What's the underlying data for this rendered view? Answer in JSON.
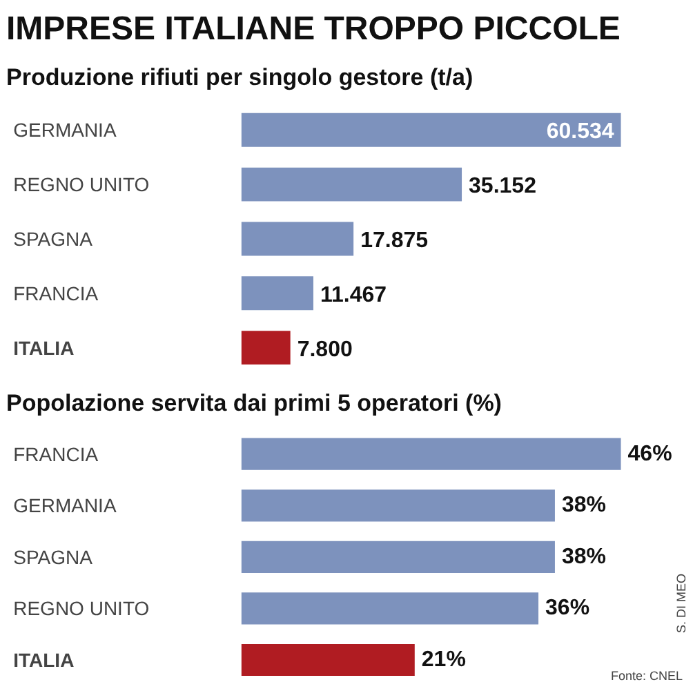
{
  "chart_data": [
    {
      "type": "bar",
      "orientation": "horizontal",
      "title": "IMPRESE ITALIANE TROPPO PICCOLE",
      "subtitle": "Produzione rifiuti per singolo gestore (t/a)",
      "categories": [
        "GERMANIA",
        "REGNO UNITO",
        "SPAGNA",
        "FRANCIA",
        "ITALIA"
      ],
      "values": [
        60534,
        35152,
        17875,
        11467,
        7800
      ],
      "value_labels": [
        "60.534",
        "35.152",
        "17.875",
        "11.467",
        "7.800"
      ],
      "colors": [
        "#7d92bd",
        "#7d92bd",
        "#7d92bd",
        "#7d92bd",
        "#b01c22"
      ]
    },
    {
      "type": "bar",
      "orientation": "horizontal",
      "title": "Popolazione servita dai primi 5 operatori (%)",
      "categories": [
        "FRANCIA",
        "GERMANIA",
        "SPAGNA",
        "REGNO UNITO",
        "ITALIA"
      ],
      "values": [
        46,
        38,
        38,
        36,
        21
      ],
      "value_labels": [
        "46%",
        "38%",
        "38%",
        "36%",
        "21%"
      ],
      "colors": [
        "#7d92bd",
        "#7d92bd",
        "#7d92bd",
        "#7d92bd",
        "#b01c22"
      ],
      "annotations": [
        "Fonte: CNEL",
        "S. DI MEO"
      ]
    }
  ]
}
